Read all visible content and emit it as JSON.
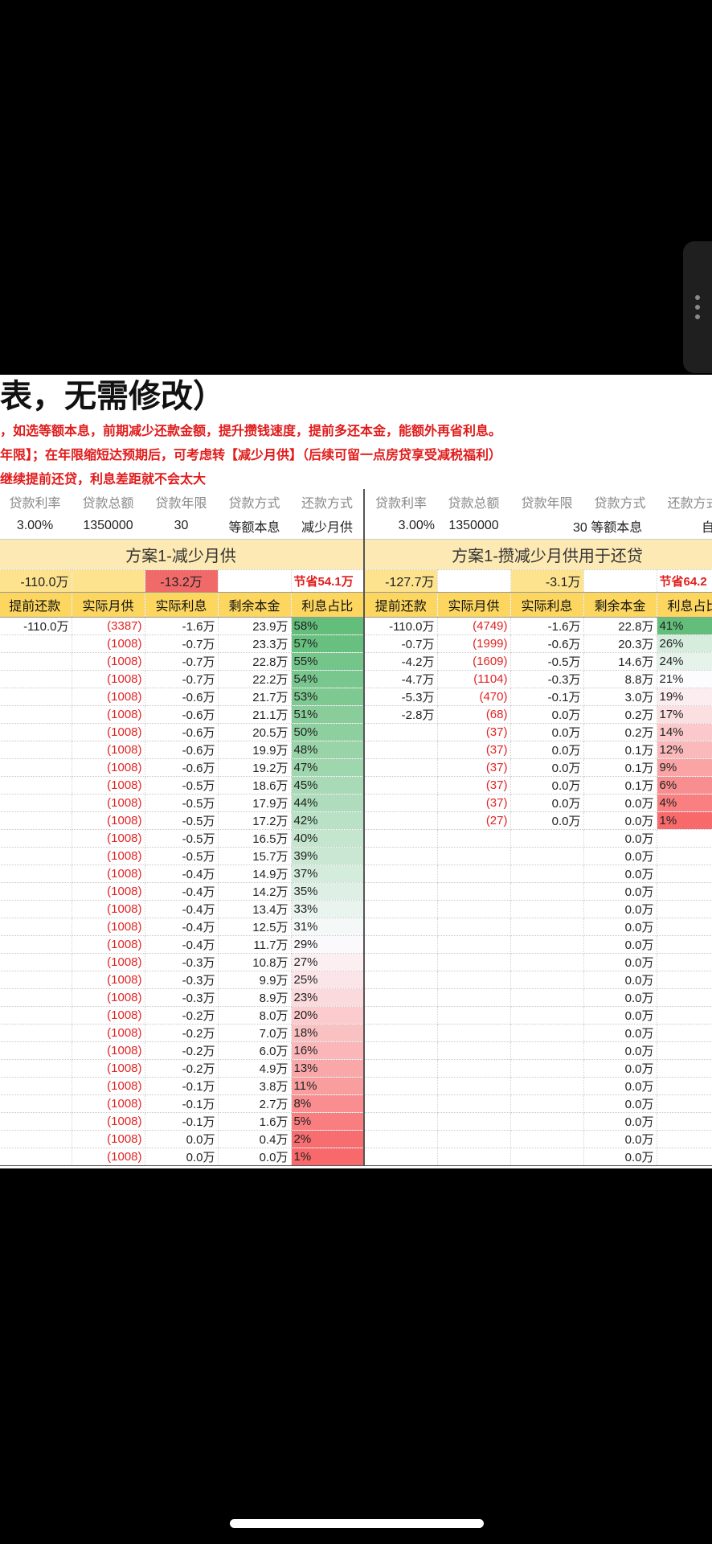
{
  "title": "表，无需修改）",
  "notes": [
    "，如选等额本息，前期减少还款金额，提升攒钱速度，提前多还本金，能额外再省利息。",
    "年限】；在年限缩短达预期后，可考虑转【减少月供】（后续可留一点房贷享受减税福利）",
    "继续提前还贷，利息差距就不会太大"
  ],
  "params": {
    "headers": [
      "贷款利率",
      "贷款总额",
      "贷款年限",
      "贷款方式",
      "还款方式",
      "贷款利率",
      "贷款总额",
      "贷款年限",
      "贷款方式",
      "还款方式"
    ],
    "left": {
      "rate": "3.00%",
      "total": "1350000",
      "years": "30",
      "loan_type": "等额本息",
      "repay": "减少月供"
    },
    "right": {
      "rate": "3.00%",
      "total": "1350000",
      "years_type": "30 等额本息",
      "repay": "自定"
    }
  },
  "plan_left": {
    "title": "方案1-减少月供",
    "sum_prepay": "-110.0万",
    "sum_interest": "-13.2万",
    "saving": "节省54.1万",
    "columns": [
      "提前还款",
      "实际月供",
      "实际利息",
      "剩余本金",
      "利息占比"
    ],
    "rows": [
      [
        "-110.0万",
        "(3387)",
        "-1.6万",
        "23.9万",
        "58%"
      ],
      [
        "",
        "(1008)",
        "-0.7万",
        "23.3万",
        "57%"
      ],
      [
        "",
        "(1008)",
        "-0.7万",
        "22.8万",
        "55%"
      ],
      [
        "",
        "(1008)",
        "-0.7万",
        "22.2万",
        "54%"
      ],
      [
        "",
        "(1008)",
        "-0.6万",
        "21.7万",
        "53%"
      ],
      [
        "",
        "(1008)",
        "-0.6万",
        "21.1万",
        "51%"
      ],
      [
        "",
        "(1008)",
        "-0.6万",
        "20.5万",
        "50%"
      ],
      [
        "",
        "(1008)",
        "-0.6万",
        "19.9万",
        "48%"
      ],
      [
        "",
        "(1008)",
        "-0.6万",
        "19.2万",
        "47%"
      ],
      [
        "",
        "(1008)",
        "-0.5万",
        "18.6万",
        "45%"
      ],
      [
        "",
        "(1008)",
        "-0.5万",
        "17.9万",
        "44%"
      ],
      [
        "",
        "(1008)",
        "-0.5万",
        "17.2万",
        "42%"
      ],
      [
        "",
        "(1008)",
        "-0.5万",
        "16.5万",
        "40%"
      ],
      [
        "",
        "(1008)",
        "-0.5万",
        "15.7万",
        "39%"
      ],
      [
        "",
        "(1008)",
        "-0.4万",
        "14.9万",
        "37%"
      ],
      [
        "",
        "(1008)",
        "-0.4万",
        "14.2万",
        "35%"
      ],
      [
        "",
        "(1008)",
        "-0.4万",
        "13.4万",
        "33%"
      ],
      [
        "",
        "(1008)",
        "-0.4万",
        "12.5万",
        "31%"
      ],
      [
        "",
        "(1008)",
        "-0.4万",
        "11.7万",
        "29%"
      ],
      [
        "",
        "(1008)",
        "-0.3万",
        "10.8万",
        "27%"
      ],
      [
        "",
        "(1008)",
        "-0.3万",
        "9.9万",
        "25%"
      ],
      [
        "",
        "(1008)",
        "-0.3万",
        "8.9万",
        "23%"
      ],
      [
        "",
        "(1008)",
        "-0.2万",
        "8.0万",
        "20%"
      ],
      [
        "",
        "(1008)",
        "-0.2万",
        "7.0万",
        "18%"
      ],
      [
        "",
        "(1008)",
        "-0.2万",
        "6.0万",
        "16%"
      ],
      [
        "",
        "(1008)",
        "-0.2万",
        "4.9万",
        "13%"
      ],
      [
        "",
        "(1008)",
        "-0.1万",
        "3.8万",
        "11%"
      ],
      [
        "",
        "(1008)",
        "-0.1万",
        "2.7万",
        "8%"
      ],
      [
        "",
        "(1008)",
        "-0.1万",
        "1.6万",
        "5%"
      ],
      [
        "",
        "(1008)",
        "0.0万",
        "0.4万",
        "2%"
      ],
      [
        "",
        "(1008)",
        "0.0万",
        "0.0万",
        "1%"
      ]
    ]
  },
  "plan_right": {
    "title": "方案1-攒减少月供用于还贷",
    "sum_prepay": "-127.7万",
    "sum_interest": "-3.1万",
    "saving": "节省64.2",
    "columns": [
      "提前还款",
      "实际月供",
      "实际利息",
      "剩余本金",
      "利息占比"
    ],
    "rows": [
      [
        "-110.0万",
        "(4749)",
        "-1.6万",
        "22.8万",
        "41%"
      ],
      [
        "-0.7万",
        "(1999)",
        "-0.6万",
        "20.3万",
        "26%"
      ],
      [
        "-4.2万",
        "(1609)",
        "-0.5万",
        "14.6万",
        "24%"
      ],
      [
        "-4.7万",
        "(1104)",
        "-0.3万",
        "8.8万",
        "21%"
      ],
      [
        "-5.3万",
        "(470)",
        "-0.1万",
        "3.0万",
        "19%"
      ],
      [
        "-2.8万",
        "(68)",
        "0.0万",
        "0.2万",
        "17%"
      ],
      [
        "",
        "(37)",
        "0.0万",
        "0.2万",
        "14%"
      ],
      [
        "",
        "(37)",
        "0.0万",
        "0.1万",
        "12%"
      ],
      [
        "",
        "(37)",
        "0.0万",
        "0.1万",
        "9%"
      ],
      [
        "",
        "(37)",
        "0.0万",
        "0.1万",
        "6%"
      ],
      [
        "",
        "(37)",
        "0.0万",
        "0.0万",
        "4%"
      ],
      [
        "",
        "(27)",
        "0.0万",
        "0.0万",
        "1%"
      ],
      [
        "",
        "",
        "",
        "0.0万",
        ""
      ],
      [
        "",
        "",
        "",
        "0.0万",
        ""
      ],
      [
        "",
        "",
        "",
        "0.0万",
        ""
      ],
      [
        "",
        "",
        "",
        "0.0万",
        ""
      ],
      [
        "",
        "",
        "",
        "0.0万",
        ""
      ],
      [
        "",
        "",
        "",
        "0.0万",
        ""
      ],
      [
        "",
        "",
        "",
        "0.0万",
        ""
      ],
      [
        "",
        "",
        "",
        "0.0万",
        ""
      ],
      [
        "",
        "",
        "",
        "0.0万",
        ""
      ],
      [
        "",
        "",
        "",
        "0.0万",
        ""
      ],
      [
        "",
        "",
        "",
        "0.0万",
        ""
      ],
      [
        "",
        "",
        "",
        "0.0万",
        ""
      ],
      [
        "",
        "",
        "",
        "0.0万",
        ""
      ],
      [
        "",
        "",
        "",
        "0.0万",
        ""
      ],
      [
        "",
        "",
        "",
        "0.0万",
        ""
      ],
      [
        "",
        "",
        "",
        "0.0万",
        ""
      ],
      [
        "",
        "",
        "",
        "0.0万",
        ""
      ],
      [
        "",
        "",
        "",
        "0.0万",
        ""
      ],
      [
        "",
        "",
        "",
        "0.0万",
        ""
      ]
    ]
  },
  "colors": {
    "page": "#000000",
    "band": "#fde9b3",
    "header": "#fcd65f",
    "highlight": "#fde38d",
    "negative": "#e12424",
    "green": "#63be7b",
    "red": "#f8696b"
  }
}
